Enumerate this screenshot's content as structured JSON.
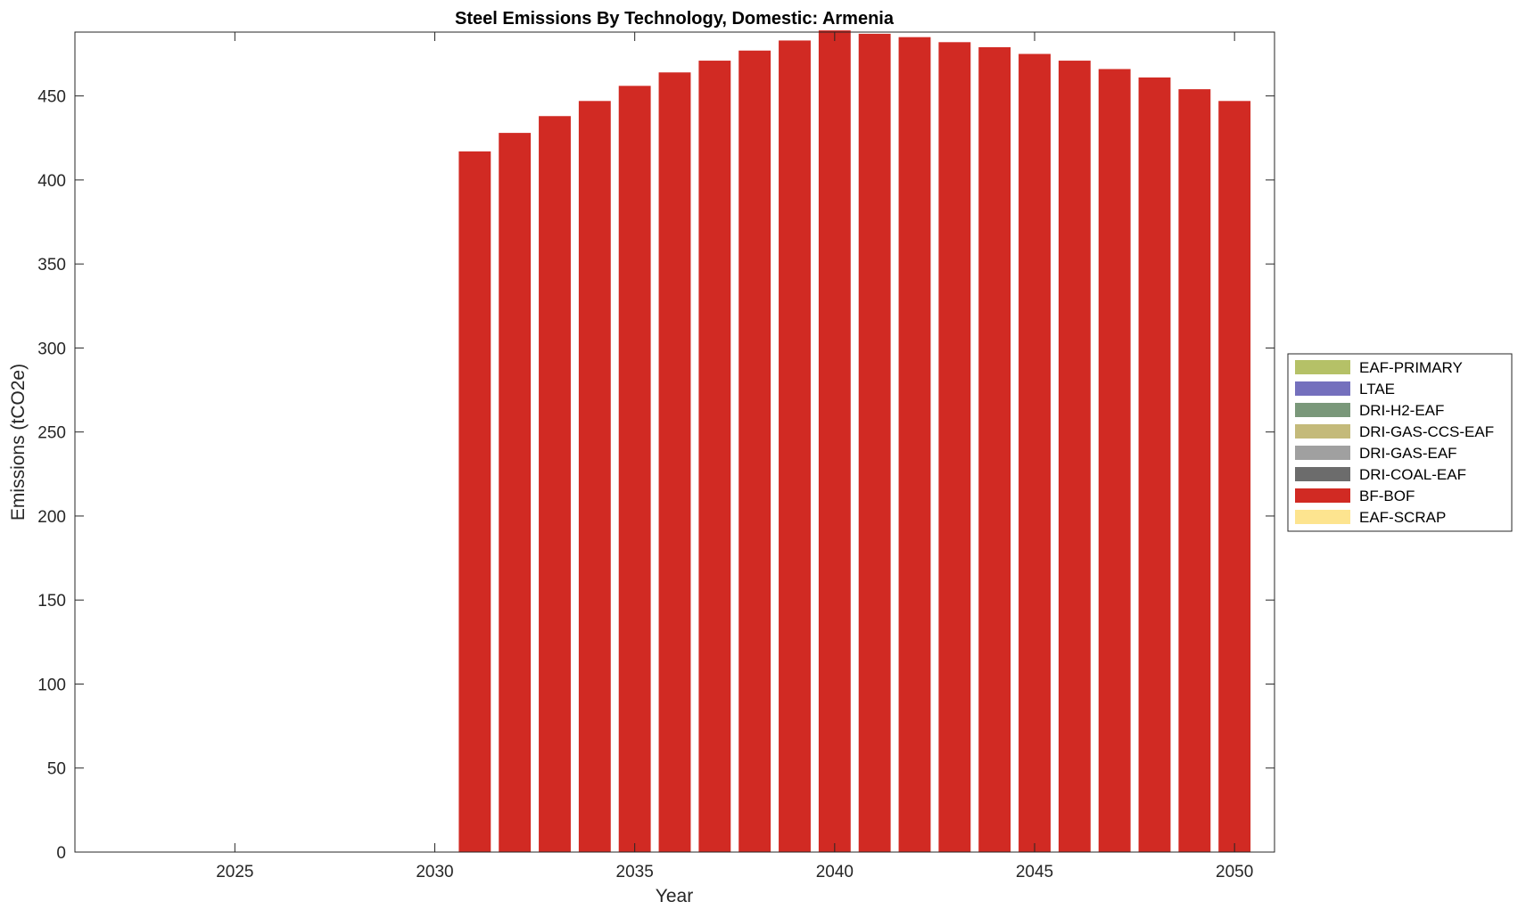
{
  "chart_data": {
    "type": "bar",
    "title": "Steel Emissions By Technology, Domestic: Armenia",
    "xlabel": "Year",
    "ylabel": "Emissions (tCO2e)",
    "xlim": [
      2021,
      2051
    ],
    "ylim": [
      0,
      488
    ],
    "xticks": [
      2025,
      2030,
      2035,
      2040,
      2045,
      2050
    ],
    "yticks": [
      0,
      50,
      100,
      150,
      200,
      250,
      300,
      350,
      400,
      450
    ],
    "grid": false,
    "legend_position": "right",
    "categories": [
      2022,
      2023,
      2024,
      2025,
      2026,
      2027,
      2028,
      2029,
      2030,
      2031,
      2032,
      2033,
      2034,
      2035,
      2036,
      2037,
      2038,
      2039,
      2040,
      2041,
      2042,
      2043,
      2044,
      2045,
      2046,
      2047,
      2048,
      2049,
      2050
    ],
    "series": [
      {
        "name": "EAF-PRIMARY",
        "color": "#b5c167",
        "values": [
          0,
          0,
          0,
          0,
          0,
          0,
          0,
          0,
          0,
          0,
          0,
          0,
          0,
          0,
          0,
          0,
          0,
          0,
          0,
          0,
          0,
          0,
          0,
          0,
          0,
          0,
          0,
          0,
          0
        ]
      },
      {
        "name": "LTAE",
        "color": "#7470bd",
        "values": [
          0,
          0,
          0,
          0,
          0,
          0,
          0,
          0,
          0,
          0,
          0,
          0,
          0,
          0,
          0,
          0,
          0,
          0,
          0,
          0,
          0,
          0,
          0,
          0,
          0,
          0,
          0,
          0,
          0
        ]
      },
      {
        "name": "DRI-H2-EAF",
        "color": "#7a987a",
        "values": [
          0,
          0,
          0,
          0,
          0,
          0,
          0,
          0,
          0,
          0,
          0,
          0,
          0,
          0,
          0,
          0,
          0,
          0,
          0,
          0,
          0,
          0,
          0,
          0,
          0,
          0,
          0,
          0,
          0
        ]
      },
      {
        "name": "DRI-GAS-CCS-EAF",
        "color": "#c4ba7a",
        "values": [
          0,
          0,
          0,
          0,
          0,
          0,
          0,
          0,
          0,
          0,
          0,
          0,
          0,
          0,
          0,
          0,
          0,
          0,
          0,
          0,
          0,
          0,
          0,
          0,
          0,
          0,
          0,
          0,
          0
        ]
      },
      {
        "name": "DRI-GAS-EAF",
        "color": "#a0a0a0",
        "values": [
          0,
          0,
          0,
          0,
          0,
          0,
          0,
          0,
          0,
          0,
          0,
          0,
          0,
          0,
          0,
          0,
          0,
          0,
          0,
          0,
          0,
          0,
          0,
          0,
          0,
          0,
          0,
          0,
          0
        ]
      },
      {
        "name": "DRI-COAL-EAF",
        "color": "#6c6c6c",
        "values": [
          0,
          0,
          0,
          0,
          0,
          0,
          0,
          0,
          0,
          0,
          0,
          0,
          0,
          0,
          0,
          0,
          0,
          0,
          0,
          0,
          0,
          0,
          0,
          0,
          0,
          0,
          0,
          0,
          0
        ]
      },
      {
        "name": "BF-BOF",
        "color": "#d12a23",
        "values": [
          0,
          0,
          0,
          0,
          0,
          0,
          0,
          0,
          0,
          417,
          428,
          438,
          447,
          456,
          464,
          471,
          477,
          483,
          489,
          487,
          485,
          482,
          479,
          475,
          471,
          466,
          461,
          454,
          447
        ]
      },
      {
        "name": "EAF-SCRAP",
        "color": "#fde48f",
        "values": [
          0,
          0,
          0,
          0,
          0,
          0,
          0,
          0,
          0,
          0,
          0,
          0,
          0,
          0,
          0,
          0,
          0,
          0,
          0,
          0,
          0,
          0,
          0,
          0,
          0,
          0,
          0,
          0,
          0
        ]
      }
    ]
  }
}
